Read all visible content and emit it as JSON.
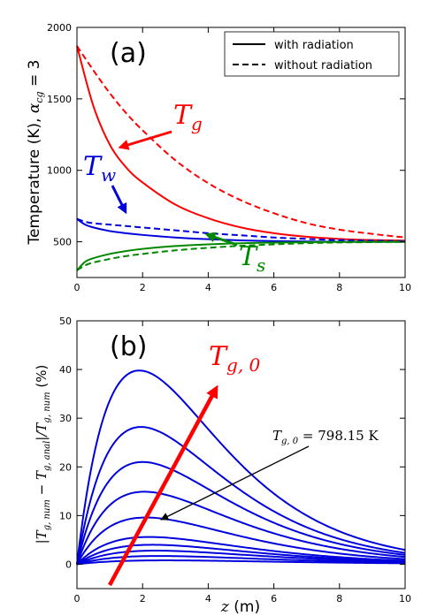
{
  "chart_data": [
    {
      "panel": "a",
      "type": "line",
      "panel_label": "(a)",
      "ylabel": "Temperature (K), ",
      "ylabel_math": "α",
      "ylabel_math_sub": "cg",
      "ylabel_math_eq": " = 3",
      "xlim": [
        0,
        10
      ],
      "ylim": [
        250,
        2000
      ],
      "xticks": [
        "0",
        "2",
        "4",
        "6",
        "8",
        "10"
      ],
      "yticks": [
        "500",
        "1000",
        "1500",
        "2000"
      ],
      "xtick_values": [
        0,
        2,
        4,
        6,
        8,
        10
      ],
      "ytick_values": [
        500,
        1000,
        1500,
        2000
      ],
      "legend": {
        "placement": "top-right",
        "entries": [
          {
            "label": "with radiation",
            "style": "solid"
          },
          {
            "label": "without radiation",
            "style": "dashed"
          }
        ]
      },
      "series": [
        {
          "name": "T_g",
          "radiation": true,
          "color": "#ff0000",
          "x": [
            0,
            0.5,
            1,
            1.5,
            2,
            3,
            4,
            5,
            6,
            7,
            8,
            9,
            10
          ],
          "y": [
            1870,
            1450,
            1180,
            1020,
            915,
            760,
            665,
            600,
            560,
            535,
            520,
            512,
            508
          ]
        },
        {
          "name": "T_g",
          "radiation": false,
          "color": "#ff0000",
          "x": [
            0,
            0.5,
            1,
            1.5,
            2,
            3,
            4,
            5,
            6,
            7,
            8,
            9,
            10
          ],
          "y": [
            1870,
            1700,
            1540,
            1400,
            1280,
            1070,
            910,
            790,
            700,
            630,
            585,
            555,
            530
          ]
        },
        {
          "name": "T_w",
          "radiation": true,
          "color": "#0000dd",
          "x": [
            0,
            0.25,
            0.5,
            1,
            1.5,
            2,
            3,
            4,
            5,
            6,
            7,
            8,
            10
          ],
          "y": [
            660,
            620,
            600,
            575,
            560,
            548,
            530,
            518,
            510,
            505,
            502,
            500,
            500
          ]
        },
        {
          "name": "T_w",
          "radiation": false,
          "color": "#0000dd",
          "x": [
            0,
            0.25,
            0.5,
            1,
            1.5,
            2,
            3,
            4,
            5,
            6,
            7,
            8,
            10
          ],
          "y": [
            660,
            640,
            630,
            620,
            610,
            600,
            580,
            560,
            545,
            530,
            520,
            512,
            505
          ]
        },
        {
          "name": "T_s",
          "radiation": true,
          "color": "#008800",
          "x": [
            0,
            0.25,
            0.5,
            1,
            1.5,
            2,
            3,
            4,
            5,
            6,
            7,
            8,
            10
          ],
          "y": [
            300,
            360,
            385,
            415,
            435,
            450,
            470,
            482,
            490,
            494,
            497,
            499,
            500
          ]
        },
        {
          "name": "T_s",
          "radiation": false,
          "color": "#008800",
          "x": [
            0,
            0.25,
            0.5,
            1,
            1.5,
            2,
            3,
            4,
            5,
            6,
            7,
            8,
            10
          ],
          "y": [
            300,
            335,
            355,
            380,
            400,
            415,
            440,
            458,
            472,
            482,
            490,
            495,
            500
          ]
        }
      ],
      "annotations": [
        {
          "text_main": "T",
          "text_sub": "g",
          "color": "#ff0000"
        },
        {
          "text_main": "T",
          "text_sub": "w",
          "color": "#0000dd"
        },
        {
          "text_main": "T",
          "text_sub": "s",
          "color": "#008800"
        }
      ]
    },
    {
      "panel": "b",
      "type": "line",
      "panel_label": "(b)",
      "xlabel_math": "z",
      "xlabel": " (m)",
      "ylabel": "|T_g,num − T_g,anal|/T_g,num  (%)",
      "ylabel_unit": "(%)",
      "xlim": [
        0,
        10
      ],
      "ylim": [
        -5,
        50
      ],
      "xticks": [
        "0",
        "2",
        "4",
        "6",
        "8",
        "10"
      ],
      "yticks": [
        "0",
        "10",
        "20",
        "30",
        "40",
        "50"
      ],
      "xtick_values": [
        0,
        2,
        4,
        6,
        8,
        10
      ],
      "ytick_values": [
        0,
        10,
        20,
        30,
        40,
        50
      ],
      "series_color": "#0000dd",
      "series": [
        {
          "peak": 39.8,
          "peak_x": 1.9
        },
        {
          "peak": 28.2,
          "peak_x": 1.95
        },
        {
          "peak": 21.0,
          "peak_x": 2.0
        },
        {
          "peak": 14.9,
          "peak_x": 2.05
        },
        {
          "peak": 9.6,
          "peak_x": 2.1
        },
        {
          "peak": 5.6,
          "peak_x": 2.2
        },
        {
          "peak": 4.0,
          "peak_x": 2.3
        },
        {
          "peak": 2.8,
          "peak_x": 2.4
        },
        {
          "peak": 1.7,
          "peak_x": 2.5
        },
        {
          "peak": 0.8,
          "peak_x": 2.7
        }
      ],
      "arrow_label_main": "T",
      "arrow_label_sub": "g, 0",
      "arrow_color": "#ff0000",
      "annotation_main": "T",
      "annotation_sub": "g, 0",
      "annotation_value": " = 798.15 K"
    }
  ]
}
